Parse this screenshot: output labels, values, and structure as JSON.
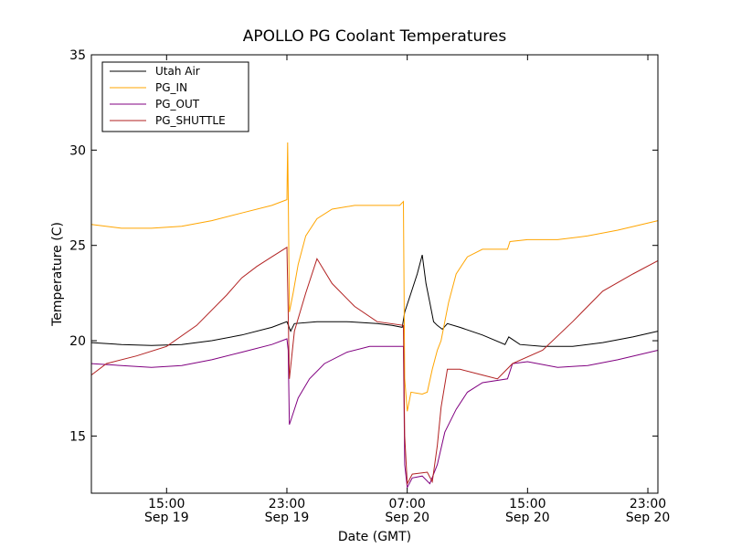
{
  "chart_data": {
    "type": "line",
    "title": "APOLLO PG Coolant Temperatures",
    "xlabel": "Date (GMT)",
    "ylabel": "Temperature (C)",
    "ylim": [
      12,
      35
    ],
    "xlim": [
      "2014-09-19 10:00",
      "2014-09-20 23:40"
    ],
    "yticks": [
      15,
      20,
      25,
      30,
      35
    ],
    "xticks": [
      {
        "x": "2014-09-19 15:00",
        "time": "15:00",
        "date": "Sep 19"
      },
      {
        "x": "2014-09-19 23:00",
        "time": "23:00",
        "date": "Sep 19"
      },
      {
        "x": "2014-09-20 07:00",
        "time": "07:00",
        "date": "Sep 20"
      },
      {
        "x": "2014-09-20 15:00",
        "time": "15:00",
        "date": "Sep 20"
      },
      {
        "x": "2014-09-20 23:00",
        "time": "23:00",
        "date": "Sep 20"
      }
    ],
    "legend_position": "top-left",
    "grid": false,
    "series": [
      {
        "name": "Utah Air",
        "color": "#000000",
        "points": [
          [
            "2014-09-19 10:00",
            19.9
          ],
          [
            "2014-09-19 12:00",
            19.8
          ],
          [
            "2014-09-19 14:00",
            19.75
          ],
          [
            "2014-09-19 16:00",
            19.8
          ],
          [
            "2014-09-19 18:00",
            20.0
          ],
          [
            "2014-09-19 20:00",
            20.3
          ],
          [
            "2014-09-19 22:00",
            20.7
          ],
          [
            "2014-09-19 23:00",
            21.0
          ],
          [
            "2014-09-19 23:15",
            20.5
          ],
          [
            "2014-09-19 23:30",
            20.9
          ],
          [
            "2014-09-20 01:00",
            21.0
          ],
          [
            "2014-09-20 03:00",
            21.0
          ],
          [
            "2014-09-20 05:00",
            20.9
          ],
          [
            "2014-09-20 06:00",
            20.8
          ],
          [
            "2014-09-20 06:40",
            20.7
          ],
          [
            "2014-09-20 06:50",
            21.5
          ],
          [
            "2014-09-20 07:15",
            22.5
          ],
          [
            "2014-09-20 07:40",
            23.5
          ],
          [
            "2014-09-20 08:00",
            24.5
          ],
          [
            "2014-09-20 08:15",
            23.0
          ],
          [
            "2014-09-20 08:30",
            22.0
          ],
          [
            "2014-09-20 08:45",
            21.0
          ],
          [
            "2014-09-20 09:00",
            20.8
          ],
          [
            "2014-09-20 09:20",
            20.6
          ],
          [
            "2014-09-20 09:40",
            20.9
          ],
          [
            "2014-09-20 10:30",
            20.7
          ],
          [
            "2014-09-20 12:00",
            20.3
          ],
          [
            "2014-09-20 13:30",
            19.8
          ],
          [
            "2014-09-20 13:45",
            20.2
          ],
          [
            "2014-09-20 14:30",
            19.8
          ],
          [
            "2014-09-20 16:00",
            19.7
          ],
          [
            "2014-09-20 18:00",
            19.7
          ],
          [
            "2014-09-20 20:00",
            19.9
          ],
          [
            "2014-09-20 22:00",
            20.2
          ],
          [
            "2014-09-20 23:40",
            20.5
          ]
        ]
      },
      {
        "name": "PG_IN",
        "color": "#ffa500",
        "points": [
          [
            "2014-09-19 10:00",
            26.1
          ],
          [
            "2014-09-19 12:00",
            25.9
          ],
          [
            "2014-09-19 14:00",
            25.9
          ],
          [
            "2014-09-19 16:00",
            26.0
          ],
          [
            "2014-09-19 18:00",
            26.3
          ],
          [
            "2014-09-19 20:00",
            26.7
          ],
          [
            "2014-09-19 22:00",
            27.1
          ],
          [
            "2014-09-19 23:00",
            27.4
          ],
          [
            "2014-09-19 23:03",
            30.4
          ],
          [
            "2014-09-19 23:06",
            27.0
          ],
          [
            "2014-09-19 23:10",
            21.5
          ],
          [
            "2014-09-19 23:25",
            22.5
          ],
          [
            "2014-09-19 23:45",
            24.0
          ],
          [
            "2014-09-20 00:15",
            25.5
          ],
          [
            "2014-09-20 01:00",
            26.4
          ],
          [
            "2014-09-20 02:00",
            26.9
          ],
          [
            "2014-09-20 03:30",
            27.1
          ],
          [
            "2014-09-20 05:00",
            27.1
          ],
          [
            "2014-09-20 06:30",
            27.1
          ],
          [
            "2014-09-20 06:45",
            27.3
          ],
          [
            "2014-09-20 06:50",
            18.0
          ],
          [
            "2014-09-20 07:00",
            16.3
          ],
          [
            "2014-09-20 07:15",
            17.3
          ],
          [
            "2014-09-20 08:00",
            17.2
          ],
          [
            "2014-09-20 08:20",
            17.3
          ],
          [
            "2014-09-20 08:40",
            18.5
          ],
          [
            "2014-09-20 09:00",
            19.5
          ],
          [
            "2014-09-20 09:15",
            20.0
          ],
          [
            "2014-09-20 09:45",
            22.0
          ],
          [
            "2014-09-20 10:15",
            23.5
          ],
          [
            "2014-09-20 11:00",
            24.4
          ],
          [
            "2014-09-20 12:00",
            24.8
          ],
          [
            "2014-09-20 13:40",
            24.8
          ],
          [
            "2014-09-20 13:50",
            25.2
          ],
          [
            "2014-09-20 15:00",
            25.3
          ],
          [
            "2014-09-20 17:00",
            25.3
          ],
          [
            "2014-09-20 19:00",
            25.5
          ],
          [
            "2014-09-20 21:00",
            25.8
          ],
          [
            "2014-09-20 23:40",
            26.3
          ]
        ]
      },
      {
        "name": "PG_OUT",
        "color": "#800080",
        "points": [
          [
            "2014-09-19 10:00",
            18.8
          ],
          [
            "2014-09-19 12:00",
            18.7
          ],
          [
            "2014-09-19 14:00",
            18.6
          ],
          [
            "2014-09-19 16:00",
            18.7
          ],
          [
            "2014-09-19 18:00",
            19.0
          ],
          [
            "2014-09-19 20:00",
            19.4
          ],
          [
            "2014-09-19 22:00",
            19.8
          ],
          [
            "2014-09-19 23:00",
            20.1
          ],
          [
            "2014-09-19 23:05",
            19.5
          ],
          [
            "2014-09-19 23:10",
            15.6
          ],
          [
            "2014-09-19 23:20",
            16.0
          ],
          [
            "2014-09-19 23:45",
            17.0
          ],
          [
            "2014-09-20 00:30",
            18.0
          ],
          [
            "2014-09-20 01:30",
            18.8
          ],
          [
            "2014-09-20 03:00",
            19.4
          ],
          [
            "2014-09-20 04:30",
            19.7
          ],
          [
            "2014-09-20 06:45",
            19.7
          ],
          [
            "2014-09-20 06:50",
            13.5
          ],
          [
            "2014-09-20 07:00",
            12.3
          ],
          [
            "2014-09-20 07:20",
            12.8
          ],
          [
            "2014-09-20 08:00",
            12.9
          ],
          [
            "2014-09-20 08:30",
            12.5
          ],
          [
            "2014-09-20 09:00",
            13.5
          ],
          [
            "2014-09-20 09:30",
            15.2
          ],
          [
            "2014-09-20 10:15",
            16.4
          ],
          [
            "2014-09-20 11:00",
            17.3
          ],
          [
            "2014-09-20 12:00",
            17.8
          ],
          [
            "2014-09-20 13:40",
            18.0
          ],
          [
            "2014-09-20 14:00",
            18.8
          ],
          [
            "2014-09-20 15:00",
            18.9
          ],
          [
            "2014-09-20 17:00",
            18.6
          ],
          [
            "2014-09-20 19:00",
            18.7
          ],
          [
            "2014-09-20 21:00",
            19.0
          ],
          [
            "2014-09-20 23:40",
            19.5
          ]
        ]
      },
      {
        "name": "PG_SHUTTLE",
        "color": "#b22222",
        "points": [
          [
            "2014-09-19 10:00",
            18.2
          ],
          [
            "2014-09-19 11:00",
            18.8
          ],
          [
            "2014-09-19 13:00",
            19.2
          ],
          [
            "2014-09-19 15:00",
            19.7
          ],
          [
            "2014-09-19 17:00",
            20.8
          ],
          [
            "2014-09-19 19:00",
            22.4
          ],
          [
            "2014-09-19 20:00",
            23.3
          ],
          [
            "2014-09-19 21:00",
            23.9
          ],
          [
            "2014-09-19 22:00",
            24.4
          ],
          [
            "2014-09-19 23:00",
            24.9
          ],
          [
            "2014-09-19 23:05",
            21.5
          ],
          [
            "2014-09-19 23:10",
            18.0
          ],
          [
            "2014-09-19 23:30",
            20.5
          ],
          [
            "2014-09-20 00:15",
            22.5
          ],
          [
            "2014-09-20 01:00",
            24.3
          ],
          [
            "2014-09-20 02:00",
            23.0
          ],
          [
            "2014-09-20 03:30",
            21.8
          ],
          [
            "2014-09-20 05:00",
            21.0
          ],
          [
            "2014-09-20 06:45",
            20.8
          ],
          [
            "2014-09-20 06:50",
            15.0
          ],
          [
            "2014-09-20 07:00",
            12.5
          ],
          [
            "2014-09-20 07:20",
            13.0
          ],
          [
            "2014-09-20 08:20",
            13.1
          ],
          [
            "2014-09-20 08:40",
            12.6
          ],
          [
            "2014-09-20 09:00",
            14.5
          ],
          [
            "2014-09-20 09:15",
            16.5
          ],
          [
            "2014-09-20 09:40",
            18.5
          ],
          [
            "2014-09-20 10:30",
            18.5
          ],
          [
            "2014-09-20 12:00",
            18.2
          ],
          [
            "2014-09-20 13:00",
            18.0
          ],
          [
            "2014-09-20 14:00",
            18.8
          ],
          [
            "2014-09-20 16:00",
            19.5
          ],
          [
            "2014-09-20 18:00",
            21.0
          ],
          [
            "2014-09-20 20:00",
            22.6
          ],
          [
            "2014-09-20 22:00",
            23.5
          ],
          [
            "2014-09-20 23:40",
            24.2
          ]
        ]
      }
    ]
  }
}
